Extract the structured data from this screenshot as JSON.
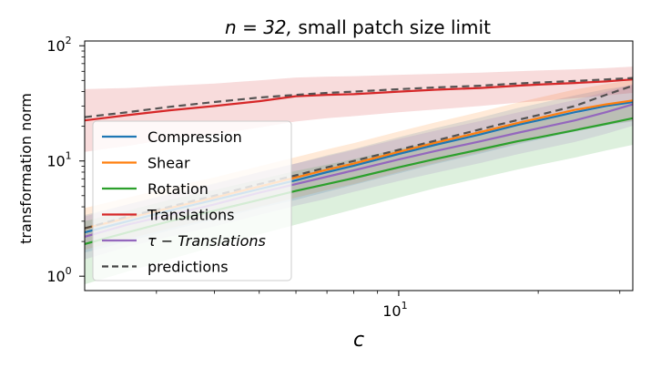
{
  "chart_data": {
    "type": "line",
    "title_prefix": "n = 32, ",
    "title_suffix": "small patch size limit",
    "xlabel": "c",
    "ylabel": "transformation norm",
    "xscale": "log",
    "yscale": "log",
    "xlim": [
      2.1,
      32
    ],
    "ylim": [
      0.75,
      110
    ],
    "x_major_ticks": [
      {
        "value": 10,
        "base": "10",
        "exp": "1"
      }
    ],
    "y_major_ticks": [
      {
        "value": 1,
        "base": "10",
        "exp": "0"
      },
      {
        "value": 10,
        "base": "10",
        "exp": "1"
      },
      {
        "value": 100,
        "base": "10",
        "exp": "2"
      }
    ],
    "x_minor_ticks": [
      3,
      4,
      5,
      6,
      7,
      8,
      9,
      20,
      30
    ],
    "y_minor_ticks": [
      2,
      3,
      4,
      5,
      6,
      7,
      8,
      9,
      20,
      30,
      40,
      50,
      60,
      70,
      80,
      90
    ],
    "x": [
      2.1,
      2.6,
      3.2,
      4,
      5,
      6,
      7,
      8,
      10,
      12,
      15,
      18,
      20,
      24,
      28,
      32
    ],
    "series": [
      {
        "name": "Compression",
        "color": "#1f77b4",
        "values": [
          2.4,
          3.0,
          3.7,
          4.6,
          5.7,
          6.8,
          8.0,
          9.1,
          11.5,
          13.8,
          17.0,
          20.5,
          22.5,
          26.5,
          30.0,
          32.5
        ],
        "band_low": [
          1.6,
          2.0,
          2.5,
          3.1,
          3.9,
          4.6,
          5.4,
          6.2,
          7.8,
          9.4,
          11.6,
          13.9,
          15.3,
          18.0,
          20.4,
          22.1
        ],
        "band_high": [
          3.4,
          4.2,
          5.2,
          6.4,
          8.0,
          9.5,
          11.2,
          12.7,
          16.1,
          19.3,
          23.8,
          28.7,
          31.5,
          37.1,
          42.0,
          45.5
        ]
      },
      {
        "name": "Shear",
        "color": "#ff7f0e",
        "values": [
          2.6,
          3.2,
          3.9,
          4.8,
          6.0,
          7.2,
          8.4,
          9.5,
          12.0,
          14.4,
          17.8,
          21.3,
          23.5,
          27.8,
          31.0,
          33.5
        ],
        "band_low": [
          1.7,
          2.1,
          2.6,
          3.2,
          4.0,
          4.8,
          5.6,
          6.3,
          8.0,
          9.6,
          11.9,
          14.2,
          15.7,
          18.5,
          20.7,
          22.3
        ],
        "band_high": [
          3.9,
          4.8,
          5.9,
          7.2,
          9.0,
          10.8,
          12.6,
          14.3,
          18.0,
          21.6,
          26.7,
          32.0,
          35.3,
          41.7,
          46.5,
          50.3
        ]
      },
      {
        "name": "Rotation",
        "color": "#2ca02c",
        "values": [
          1.9,
          2.4,
          3.0,
          3.7,
          4.6,
          5.5,
          6.3,
          7.1,
          8.8,
          10.4,
          12.6,
          14.8,
          16.0,
          18.5,
          21.0,
          23.5
        ],
        "band_low": [
          0.85,
          1.1,
          1.4,
          1.8,
          2.3,
          2.8,
          3.3,
          3.8,
          4.8,
          5.8,
          7.1,
          8.4,
          9.2,
          10.7,
          12.3,
          13.8
        ],
        "band_high": [
          3.0,
          3.7,
          4.6,
          5.6,
          6.9,
          8.2,
          9.3,
          10.4,
          12.7,
          14.9,
          17.9,
          20.9,
          22.5,
          25.8,
          29.0,
          32.0
        ]
      },
      {
        "name": "Translations",
        "color": "#d62728",
        "values": [
          22.5,
          25.0,
          27.5,
          30.0,
          33.0,
          36.5,
          37.5,
          38.0,
          40.0,
          41.5,
          43.0,
          45.0,
          46.0,
          47.5,
          49.0,
          51.0
        ],
        "band_low": [
          12.0,
          13.5,
          15.5,
          17.0,
          19.5,
          22.0,
          23.5,
          24.5,
          26.5,
          28.0,
          30.0,
          32.0,
          33.0,
          35.0,
          37.0,
          39.0
        ],
        "band_high": [
          42.0,
          43.0,
          45.0,
          47.0,
          50.0,
          53.0,
          54.0,
          54.5,
          56.0,
          57.0,
          58.5,
          60.0,
          61.0,
          62.5,
          64.0,
          66.0
        ]
      },
      {
        "name": "τ − Translations",
        "color": "#9467bd",
        "values": [
          2.2,
          2.8,
          3.4,
          4.2,
          5.3,
          6.3,
          7.3,
          8.3,
          10.3,
          12.2,
          14.8,
          17.5,
          19.2,
          22.5,
          26.5,
          31.0
        ],
        "band_low": [
          1.4,
          1.8,
          2.2,
          2.7,
          3.4,
          4.1,
          4.7,
          5.4,
          6.7,
          7.9,
          9.6,
          11.4,
          12.5,
          14.6,
          17.2,
          20.2
        ],
        "band_high": [
          3.3,
          4.2,
          5.1,
          6.3,
          8.0,
          9.5,
          11.0,
          12.5,
          15.5,
          18.3,
          22.2,
          26.3,
          28.8,
          33.8,
          39.8,
          46.5
        ]
      },
      {
        "name": "predictions",
        "color": "#444444",
        "dashed": true,
        "values": [
          2.6,
          3.3,
          4.0,
          5.0,
          6.3,
          7.5,
          8.8,
          10.0,
          12.5,
          15.0,
          18.8,
          22.6,
          25.0,
          30.0,
          37.5,
          45.0
        ],
        "pred_upper": [
          24.0,
          26.5,
          29.5,
          32.5,
          35.5,
          37.5,
          39.0,
          40.0,
          42.0,
          43.5,
          45.0,
          47.0,
          48.0,
          49.5,
          51.0,
          52.5
        ]
      }
    ],
    "legend": {
      "position": "lower-left",
      "entries": [
        {
          "label": "Compression",
          "color": "#1f77b4",
          "dashed": false
        },
        {
          "label": "Shear",
          "color": "#ff7f0e",
          "dashed": false
        },
        {
          "label": "Rotation",
          "color": "#2ca02c",
          "dashed": false
        },
        {
          "label": "Translations",
          "color": "#d62728",
          "dashed": false
        },
        {
          "label": "τ − Translations",
          "color": "#9467bd",
          "dashed": false,
          "italic": true
        },
        {
          "label": "predictions",
          "color": "#444444",
          "dashed": true
        }
      ]
    }
  }
}
